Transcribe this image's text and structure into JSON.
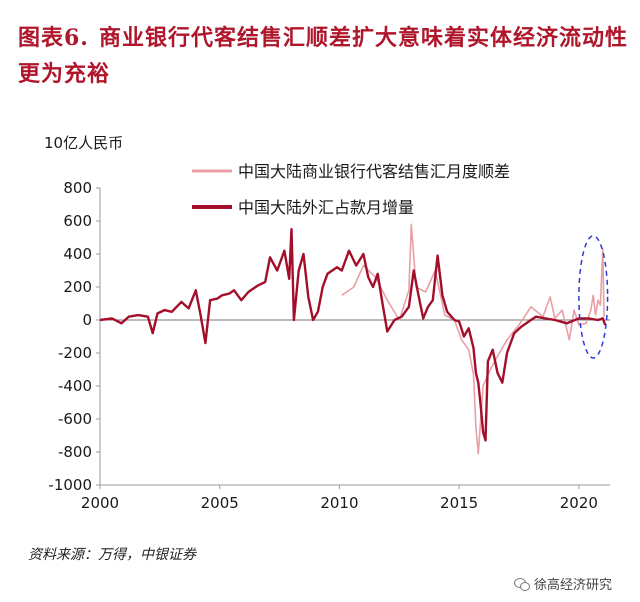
{
  "title": {
    "label": "图表6.",
    "text": "商业银行代客结售汇顺差扩大意味着实体经济流动性更为充裕"
  },
  "unit": "10亿人民币",
  "source": "资料来源：万得，中银证券",
  "watermark": "徐高经济研究",
  "colors": {
    "title": "#b0162b",
    "series_light": "#e8a0a6",
    "series_dark": "#a30f2a",
    "annotation": "#2f3cd6"
  },
  "chart_data": {
    "type": "line",
    "title": "",
    "xlabel": "",
    "ylabel": "10亿人民币",
    "xlim": [
      2000,
      2021.3
    ],
    "ylim": [
      -1000,
      800
    ],
    "x_ticks": [
      "2000",
      "2005",
      "2010",
      "2015",
      "2020"
    ],
    "y_ticks": [
      "800",
      "600",
      "400",
      "200",
      "0",
      "-200",
      "-400",
      "-600",
      "-800",
      "-1000"
    ],
    "legend_position": "top-center",
    "grid": false,
    "series": [
      {
        "name": "中国大陆商业银行代客结售汇月度顺差",
        "color": "#e8a0a6",
        "points": [
          [
            2010.1,
            150
          ],
          [
            2010.6,
            200
          ],
          [
            2011.0,
            330
          ],
          [
            2011.5,
            260
          ],
          [
            2012.0,
            120
          ],
          [
            2012.5,
            0
          ],
          [
            2012.9,
            180
          ],
          [
            2013.0,
            580
          ],
          [
            2013.2,
            200
          ],
          [
            2013.6,
            170
          ],
          [
            2014.0,
            300
          ],
          [
            2014.4,
            30
          ],
          [
            2014.8,
            0
          ],
          [
            2015.1,
            -120
          ],
          [
            2015.4,
            -180
          ],
          [
            2015.6,
            -330
          ],
          [
            2015.7,
            -650
          ],
          [
            2015.8,
            -810
          ],
          [
            2015.9,
            -600
          ],
          [
            2016.0,
            -400
          ],
          [
            2016.3,
            -300
          ],
          [
            2016.6,
            -220
          ],
          [
            2017.0,
            -120
          ],
          [
            2017.5,
            -30
          ],
          [
            2018.0,
            80
          ],
          [
            2018.5,
            20
          ],
          [
            2018.8,
            140
          ],
          [
            2019.0,
            10
          ],
          [
            2019.3,
            60
          ],
          [
            2019.6,
            -120
          ],
          [
            2019.8,
            60
          ],
          [
            2020.0,
            -30
          ],
          [
            2020.3,
            -20
          ],
          [
            2020.5,
            60
          ],
          [
            2020.6,
            150
          ],
          [
            2020.7,
            30
          ],
          [
            2020.8,
            120
          ],
          [
            2020.9,
            90
          ],
          [
            2021.0,
            430
          ],
          [
            2021.05,
            20
          ]
        ]
      },
      {
        "name": "中国大陆外汇占款月增量",
        "color": "#a30f2a",
        "points": [
          [
            2000.0,
            0
          ],
          [
            2000.5,
            10
          ],
          [
            2000.9,
            -20
          ],
          [
            2001.2,
            20
          ],
          [
            2001.6,
            30
          ],
          [
            2002.0,
            20
          ],
          [
            2002.2,
            -80
          ],
          [
            2002.4,
            40
          ],
          [
            2002.7,
            60
          ],
          [
            2003.0,
            50
          ],
          [
            2003.4,
            110
          ],
          [
            2003.7,
            70
          ],
          [
            2004.0,
            180
          ],
          [
            2004.2,
            30
          ],
          [
            2004.4,
            -140
          ],
          [
            2004.6,
            120
          ],
          [
            2004.9,
            130
          ],
          [
            2005.1,
            150
          ],
          [
            2005.4,
            160
          ],
          [
            2005.6,
            180
          ],
          [
            2005.9,
            120
          ],
          [
            2006.2,
            170
          ],
          [
            2006.6,
            210
          ],
          [
            2006.9,
            230
          ],
          [
            2007.1,
            380
          ],
          [
            2007.4,
            300
          ],
          [
            2007.7,
            420
          ],
          [
            2007.9,
            250
          ],
          [
            2008.0,
            550
          ],
          [
            2008.1,
            0
          ],
          [
            2008.3,
            300
          ],
          [
            2008.5,
            400
          ],
          [
            2008.7,
            140
          ],
          [
            2008.9,
            0
          ],
          [
            2009.1,
            50
          ],
          [
            2009.3,
            200
          ],
          [
            2009.5,
            280
          ],
          [
            2009.7,
            300
          ],
          [
            2009.9,
            320
          ],
          [
            2010.1,
            300
          ],
          [
            2010.4,
            420
          ],
          [
            2010.7,
            330
          ],
          [
            2011.0,
            400
          ],
          [
            2011.2,
            260
          ],
          [
            2011.4,
            200
          ],
          [
            2011.6,
            280
          ],
          [
            2011.8,
            100
          ],
          [
            2012.0,
            -70
          ],
          [
            2012.3,
            0
          ],
          [
            2012.6,
            20
          ],
          [
            2012.9,
            80
          ],
          [
            2013.1,
            300
          ],
          [
            2013.3,
            150
          ],
          [
            2013.5,
            10
          ],
          [
            2013.7,
            80
          ],
          [
            2013.9,
            120
          ],
          [
            2014.1,
            390
          ],
          [
            2014.3,
            150
          ],
          [
            2014.5,
            50
          ],
          [
            2014.8,
            0
          ],
          [
            2015.0,
            -10
          ],
          [
            2015.2,
            -100
          ],
          [
            2015.4,
            -50
          ],
          [
            2015.6,
            -170
          ],
          [
            2015.7,
            -320
          ],
          [
            2015.8,
            -380
          ],
          [
            2015.9,
            -520
          ],
          [
            2016.0,
            -680
          ],
          [
            2016.1,
            -730
          ],
          [
            2016.2,
            -250
          ],
          [
            2016.4,
            -180
          ],
          [
            2016.6,
            -320
          ],
          [
            2016.8,
            -380
          ],
          [
            2017.0,
            -200
          ],
          [
            2017.3,
            -80
          ],
          [
            2017.6,
            -40
          ],
          [
            2017.9,
            -10
          ],
          [
            2018.2,
            20
          ],
          [
            2018.6,
            10
          ],
          [
            2019.0,
            0
          ],
          [
            2019.5,
            -20
          ],
          [
            2020.0,
            10
          ],
          [
            2020.4,
            10
          ],
          [
            2020.8,
            0
          ],
          [
            2021.0,
            10
          ],
          [
            2021.1,
            -30
          ]
        ]
      }
    ],
    "annotation": {
      "shape": "dashed-ellipse",
      "x_range": [
        2020.0,
        2021.2
      ],
      "y_range": [
        -230,
        510
      ],
      "color": "#2f3cd6"
    }
  }
}
